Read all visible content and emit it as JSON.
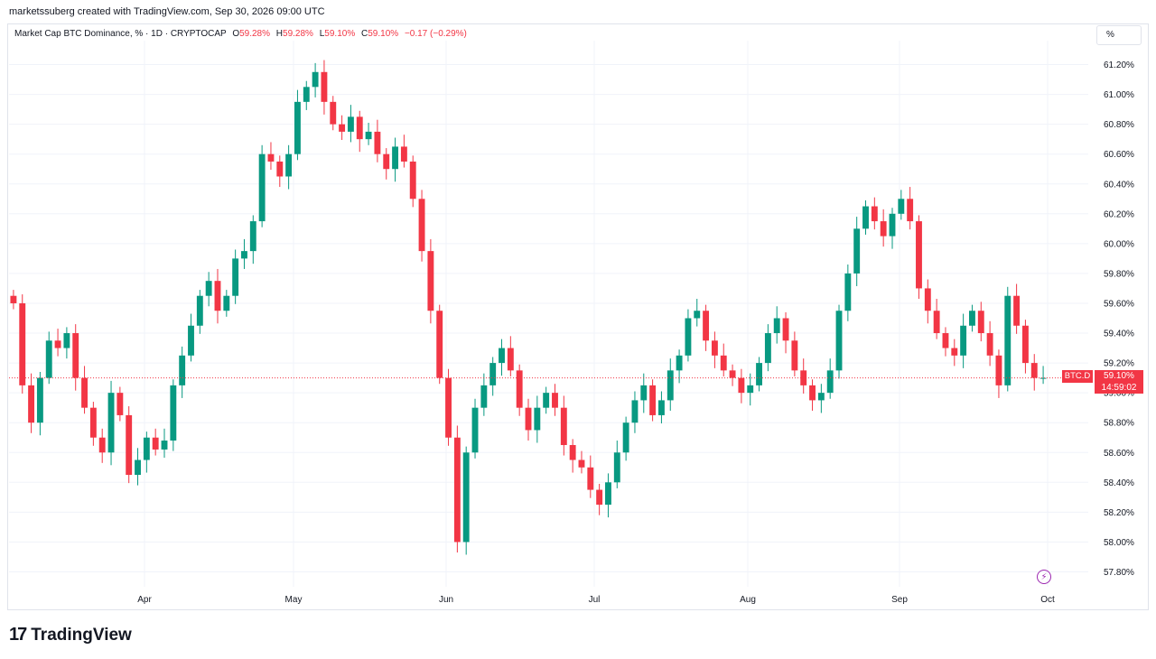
{
  "credit": "marketssuberg created with TradingView.com, Sep 30, 2026 09:00 UTC",
  "legend": {
    "symbol": "Market Cap BTC Dominance, % · 1D · CRYPTOCAP",
    "o_label": "O",
    "o_value": "59.28%",
    "h_label": "H",
    "h_value": "59.28%",
    "l_label": "L",
    "l_value": "59.10%",
    "c_label": "C",
    "c_value": "59.10%",
    "change": "−0.17 (−0.29%)"
  },
  "scale_button": "%",
  "price_tag": {
    "symbol": "BTC.D",
    "price": "59.10%",
    "countdown": "14:59:02"
  },
  "logo_text": "TradingView",
  "icons": {
    "logo": "tradingview-logo-icon",
    "alert": "lightning-bolt-icon"
  },
  "colors": {
    "up": "#089981",
    "down": "#f23645",
    "grid": "#f0f3fa",
    "text": "#131722"
  },
  "chart_data": {
    "type": "candlestick",
    "title": "Market Cap BTC Dominance, % · 1D · CRYPTOCAP",
    "ylim": [
      57.7,
      61.3
    ],
    "y_ticks": [
      "57.80%",
      "58.00%",
      "58.20%",
      "58.40%",
      "58.60%",
      "58.80%",
      "59.00%",
      "59.20%",
      "59.40%",
      "59.60%",
      "59.80%",
      "60.00%",
      "60.20%",
      "60.40%",
      "60.60%",
      "60.80%",
      "61.00%",
      "61.20%"
    ],
    "x_ticks": [
      "Apr",
      "May",
      "Jun",
      "Jul",
      "Aug",
      "Sep",
      "Oct"
    ],
    "last_price": 59.1,
    "series_close_approx": [
      59.6,
      59.05,
      58.8,
      59.1,
      59.35,
      59.3,
      59.4,
      59.1,
      58.9,
      58.7,
      58.6,
      59.0,
      58.85,
      58.45,
      58.55,
      58.7,
      58.62,
      58.68,
      59.05,
      59.25,
      59.45,
      59.65,
      59.75,
      59.55,
      59.65,
      59.9,
      59.95,
      60.15,
      60.6,
      60.55,
      60.45,
      60.6,
      60.95,
      61.05,
      61.15,
      60.95,
      60.8,
      60.75,
      60.85,
      60.7,
      60.75,
      60.6,
      60.5,
      60.65,
      60.55,
      60.3,
      59.95,
      59.55,
      59.1,
      58.7,
      58.0,
      58.6,
      58.9,
      59.05,
      59.2,
      59.3,
      59.15,
      58.9,
      58.75,
      58.9,
      59.0,
      58.9,
      58.65,
      58.55,
      58.5,
      58.35,
      58.25,
      58.4,
      58.6,
      58.8,
      58.95,
      59.05,
      58.85,
      58.95,
      59.15,
      59.25,
      59.5,
      59.55,
      59.35,
      59.25,
      59.15,
      59.1,
      59.0,
      59.05,
      59.2,
      59.4,
      59.5,
      59.35,
      59.15,
      59.05,
      58.95,
      59.0,
      59.15,
      59.55,
      59.8,
      60.1,
      60.25,
      60.15,
      60.05,
      60.2,
      60.3,
      60.15,
      59.7,
      59.55,
      59.4,
      59.3,
      59.25,
      59.45,
      59.55,
      59.4,
      59.25,
      59.05,
      59.65,
      59.45,
      59.2,
      59.1,
      59.1
    ]
  }
}
